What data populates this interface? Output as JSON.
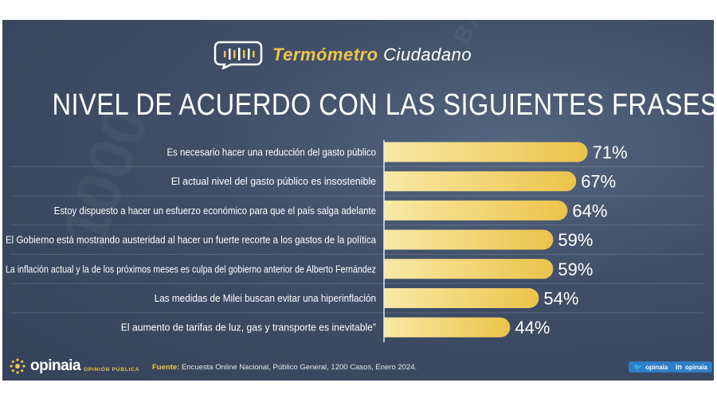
{
  "brand": {
    "title_accent": "Termómetro",
    "title_rest": "Ciudadano"
  },
  "main_title": "NIVEL DE ACUERDO CON LAS SIGUIENTES FRASES:",
  "colors": {
    "background": "#3f4d66",
    "bar_light": "#f8e9a6",
    "bar_dark": "#ecc34a",
    "accent": "#f0c44c",
    "social": "#2e7fc7"
  },
  "chart_data": {
    "type": "bar",
    "orientation": "horizontal",
    "categories": [
      "Es necesario hacer una reducción del gasto público",
      "El actual nivel del gasto público es insostenible",
      "Estoy dispuesto a hacer un esfuerzo económico para que el país salga adelante",
      "El Gobierno está mostrando austeridad al hacer un fuerte recorte a los gastos de la política",
      "La inflación actual y la de los próximos meses es culpa del gobierno anterior de Alberto Fernández",
      "Las medidas de Milei buscan evitar una hiperinflación",
      "El aumento de tarifas de luz, gas y transporte es inevitable”"
    ],
    "values": [
      71,
      67,
      64,
      59,
      59,
      54,
      44
    ],
    "value_labels": [
      "71%",
      "67%",
      "64%",
      "59%",
      "59%",
      "54%",
      "44%"
    ],
    "unit": "%",
    "xlim": [
      0,
      100
    ],
    "grid": false,
    "legend": "none"
  },
  "footer": {
    "logo_text": "opinaia",
    "logo_sub": "OPINIÓN PÚBLICA",
    "source_label": "Fuente:",
    "source_text": " Encuesta Online Nacional, Público General, 1200 Casos, Enero 2024.",
    "twitter_icon": "twitter-bird-icon",
    "twitter_label": "opinaia",
    "linkedin_icon": "linkedin-icon",
    "linkedin_label": "opinaia"
  }
}
